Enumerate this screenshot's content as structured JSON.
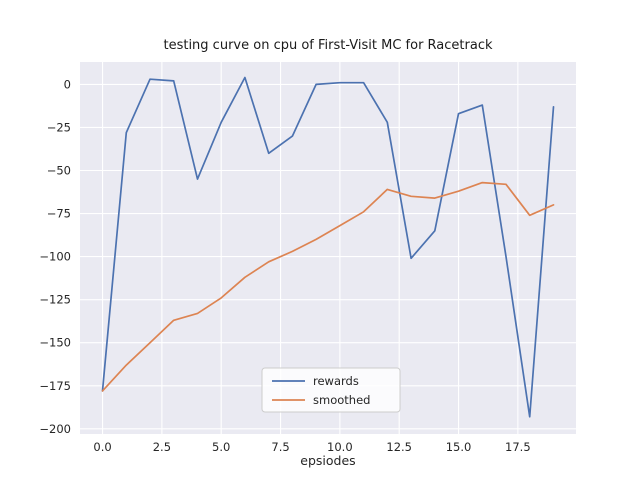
{
  "chart_data": {
    "type": "line",
    "title": "testing curve on cpu of First-Visit MC for Racetrack",
    "xlabel": "epsiodes",
    "ylabel": "",
    "grid": true,
    "legend_position": "lower center",
    "plot_bg": "#eaeaf2",
    "grid_color": "#ffffff",
    "tick_color": "#262626",
    "xlim": [
      -0.95,
      19.95
    ],
    "ylim": [
      -203,
      13
    ],
    "xticks": [
      0,
      2.5,
      5,
      7.5,
      10,
      12.5,
      15,
      17.5
    ],
    "xtick_labels": [
      "0.0",
      "2.5",
      "5.0",
      "7.5",
      "10.0",
      "12.5",
      "15.0",
      "17.5"
    ],
    "yticks": [
      0,
      -25,
      -50,
      -75,
      -100,
      -125,
      -150,
      -175,
      -200
    ],
    "ytick_labels": [
      "0",
      "−25",
      "−50",
      "−75",
      "−100",
      "−125",
      "−150",
      "−175",
      "−200"
    ],
    "x": [
      0,
      1,
      2,
      3,
      4,
      5,
      6,
      7,
      8,
      9,
      10,
      11,
      12,
      13,
      14,
      15,
      16,
      17,
      18,
      19
    ],
    "series": [
      {
        "name": "rewards",
        "color": "#4c72b0",
        "values": [
          -178,
          -28,
          3,
          2,
          -55,
          -22,
          4,
          -40,
          -30,
          0,
          1,
          1,
          -22,
          -101,
          -85,
          -17,
          -12,
          -100,
          -193,
          -13
        ]
      },
      {
        "name": "smoothed",
        "color": "#dd8452",
        "values": [
          -178,
          -163,
          -150,
          -137,
          -133,
          -124,
          -112,
          -103,
          -97,
          -90,
          -82,
          -74,
          -61,
          -65,
          -66,
          -62,
          -57,
          -58,
          -76,
          -70
        ]
      }
    ],
    "legend": {
      "labels": [
        "rewards",
        "smoothed"
      ]
    }
  }
}
